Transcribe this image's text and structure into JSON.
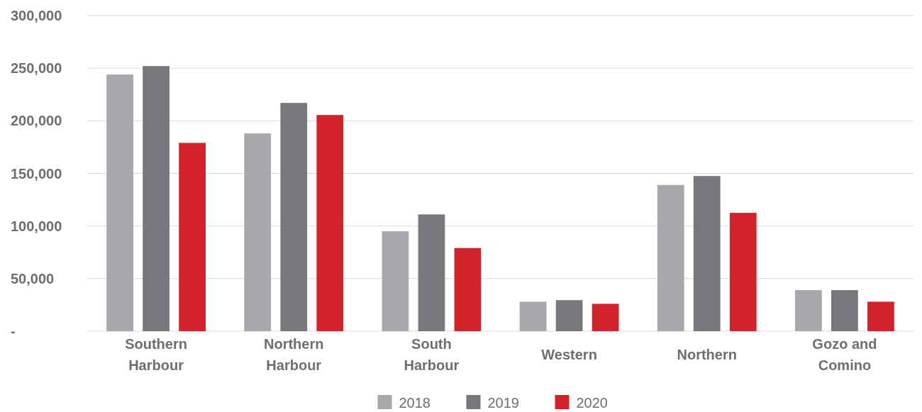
{
  "chart_data": {
    "type": "bar",
    "categories": [
      "Southern\nHarbour",
      "Northern\nHarbour",
      "South\nHarbour",
      "Western",
      "Northern",
      "Gozo and\nComino"
    ],
    "series": [
      {
        "name": "2018",
        "color": "#a7a8ab",
        "values": [
          244000,
          188000,
          95000,
          28000,
          139000,
          39000
        ]
      },
      {
        "name": "2019",
        "color": "#77787c",
        "values": [
          252000,
          217000,
          111000,
          29500,
          147500,
          39000
        ]
      },
      {
        "name": "2020",
        "color": "#d2232a",
        "values": [
          179000,
          205500,
          79000,
          26000,
          112500,
          28000
        ]
      }
    ],
    "ylim": [
      0,
      300000
    ],
    "yticks": [
      {
        "value": 0,
        "label": "-"
      },
      {
        "value": 50000,
        "label": "50,000"
      },
      {
        "value": 100000,
        "label": "100,000"
      },
      {
        "value": 150000,
        "label": "150,000"
      },
      {
        "value": 200000,
        "label": "200,000"
      },
      {
        "value": 250000,
        "label": "250,000"
      },
      {
        "value": 300000,
        "label": "300,000"
      }
    ],
    "grid": "y",
    "legend": "bottom"
  }
}
